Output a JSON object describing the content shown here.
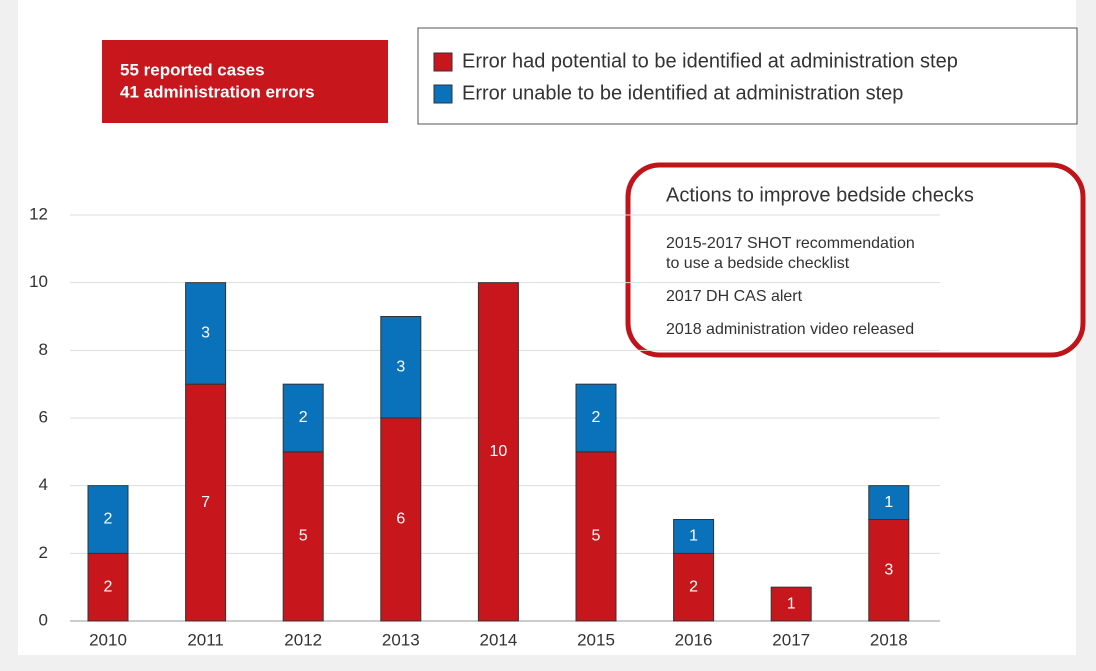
{
  "chart_data": {
    "type": "stacked_bar",
    "summary": [
      "55 reported cases",
      "41 administration errors"
    ],
    "categories": [
      "2010",
      "2011",
      "2012",
      "2013",
      "2014",
      "2015",
      "2016",
      "2017",
      "2018"
    ],
    "series": [
      {
        "name": "Error had potential to be identified at administration step",
        "color": "#c8161d",
        "values": [
          2,
          7,
          5,
          6,
          10,
          5,
          2,
          1,
          3
        ]
      },
      {
        "name": "Error unable to be identified at administration step",
        "color": "#0a72ba",
        "values": [
          2,
          3,
          2,
          3,
          0,
          2,
          1,
          0,
          1
        ]
      }
    ],
    "ylim": [
      0,
      12
    ],
    "yticks": [
      0,
      2,
      4,
      6,
      8,
      10,
      12
    ],
    "grid": true,
    "annotation": {
      "title": "Actions to improve bedside checks",
      "items": [
        [
          "2015-2017 SHOT recommendation",
          "to use a bedside checklist"
        ],
        [
          "2017 DH CAS alert"
        ],
        [
          "2018 administration video released"
        ]
      ]
    }
  }
}
